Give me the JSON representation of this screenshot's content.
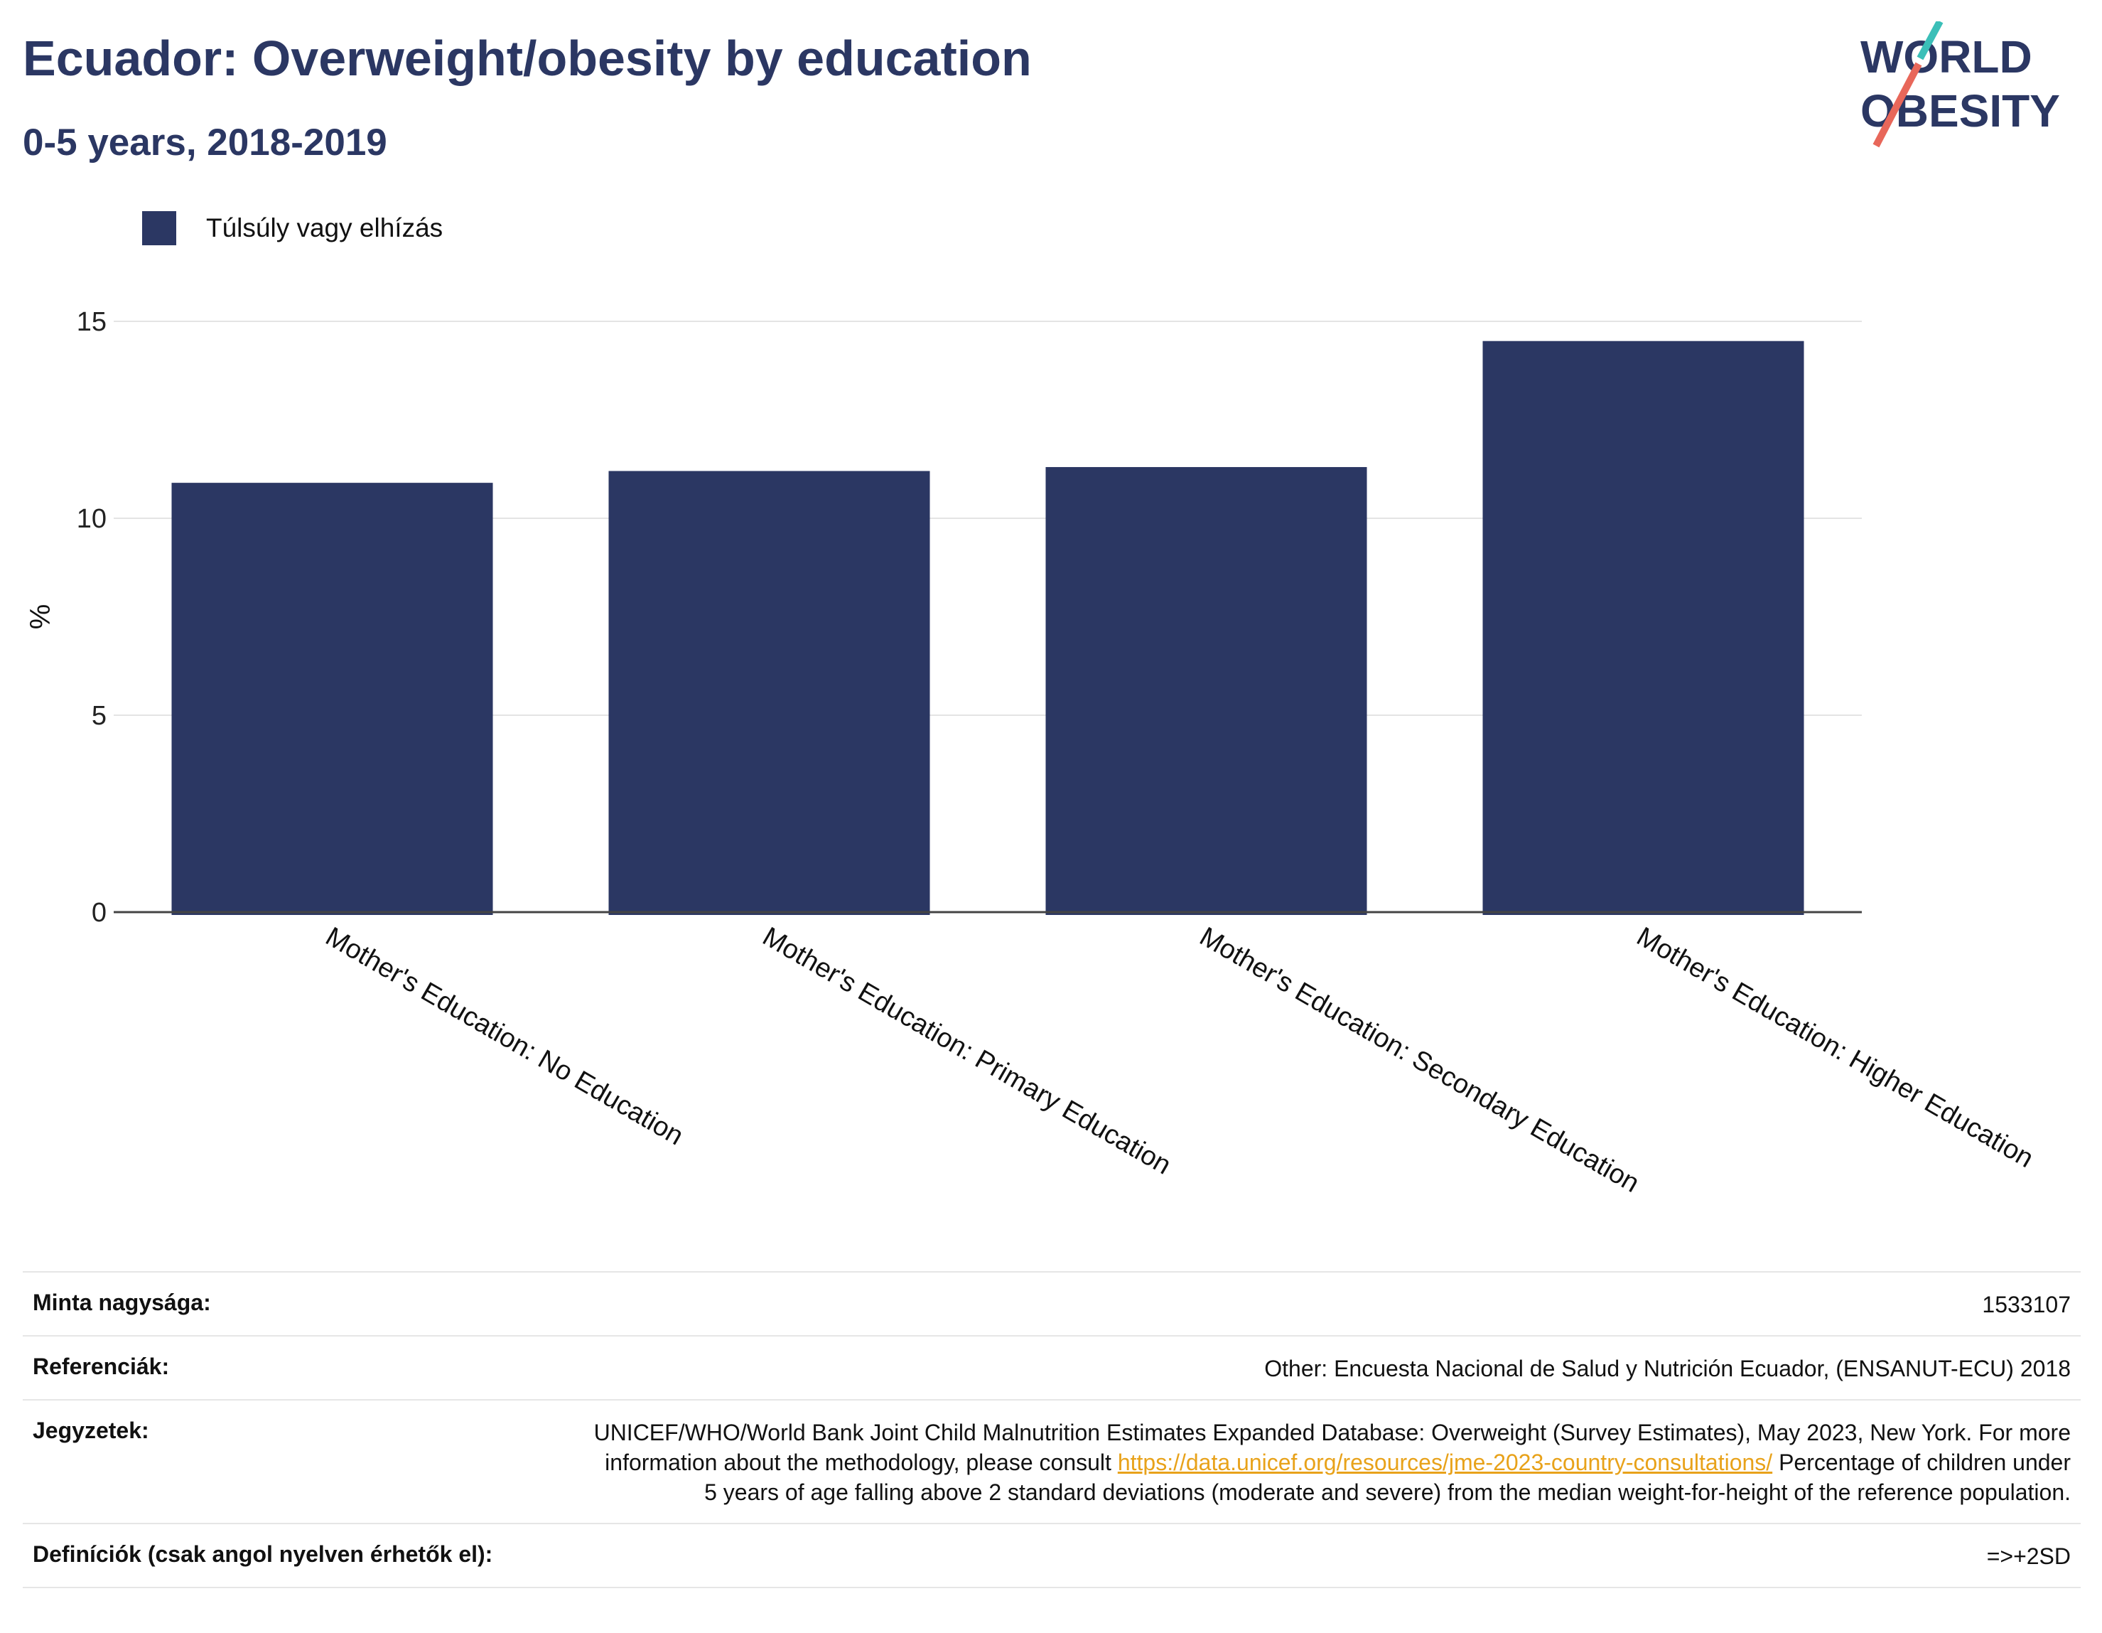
{
  "header": {
    "title": "Ecuador: Overweight/obesity by education",
    "subtitle": "0-5 years, 2018-2019",
    "logo_text_line1": "WORLD",
    "logo_text_line2": "OBESITY"
  },
  "legend": {
    "label": "Túlsúly vagy elhízás"
  },
  "colors": {
    "bar": "#2b3763",
    "title": "#2b3763",
    "link": "#e8a21a",
    "logo_teal": "#3bbfb8",
    "logo_coral": "#e8675a"
  },
  "chart_data": {
    "type": "bar",
    "title": "Ecuador: Overweight/obesity by education",
    "subtitle": "0-5 years, 2018-2019",
    "categories": [
      "Mother's Education: No Education",
      "Mother's Education: Primary Education",
      "Mother's Education: Secondary Education",
      "Mother's Education: Higher Education"
    ],
    "series": [
      {
        "name": "Túlsúly vagy elhízás",
        "values": [
          10.9,
          11.2,
          11.3,
          14.5
        ]
      }
    ],
    "xlabel": "",
    "ylabel": "%",
    "ylim": [
      0,
      15
    ],
    "yticks": [
      0,
      5,
      10,
      15
    ],
    "grid": true,
    "legend_position": "top-left"
  },
  "footer": {
    "rows": [
      {
        "key": "Minta nagysága:",
        "value": "1533107"
      },
      {
        "key": "Referenciák:",
        "value": "Other: Encuesta Nacional de Salud y Nutrición Ecuador, (ENSANUT-ECU) 2018"
      },
      {
        "key": "Jegyzetek:",
        "value_before_link": "UNICEF/WHO/World Bank Joint Child Malnutrition Estimates Expanded Database: Overweight (Survey Estimates), May 2023, New York. For more information about the methodology, please consult ",
        "link": "https://data.unicef.org/resources/jme-2023-country-consultations/",
        "value_after_link": " Percentage of children under 5 years of age falling above 2 standard deviations (moderate and severe) from the median weight-for-height of the reference population."
      },
      {
        "key": "Definíciók (csak angol nyelven érhetők el):",
        "value": "=>+2SD"
      }
    ]
  }
}
